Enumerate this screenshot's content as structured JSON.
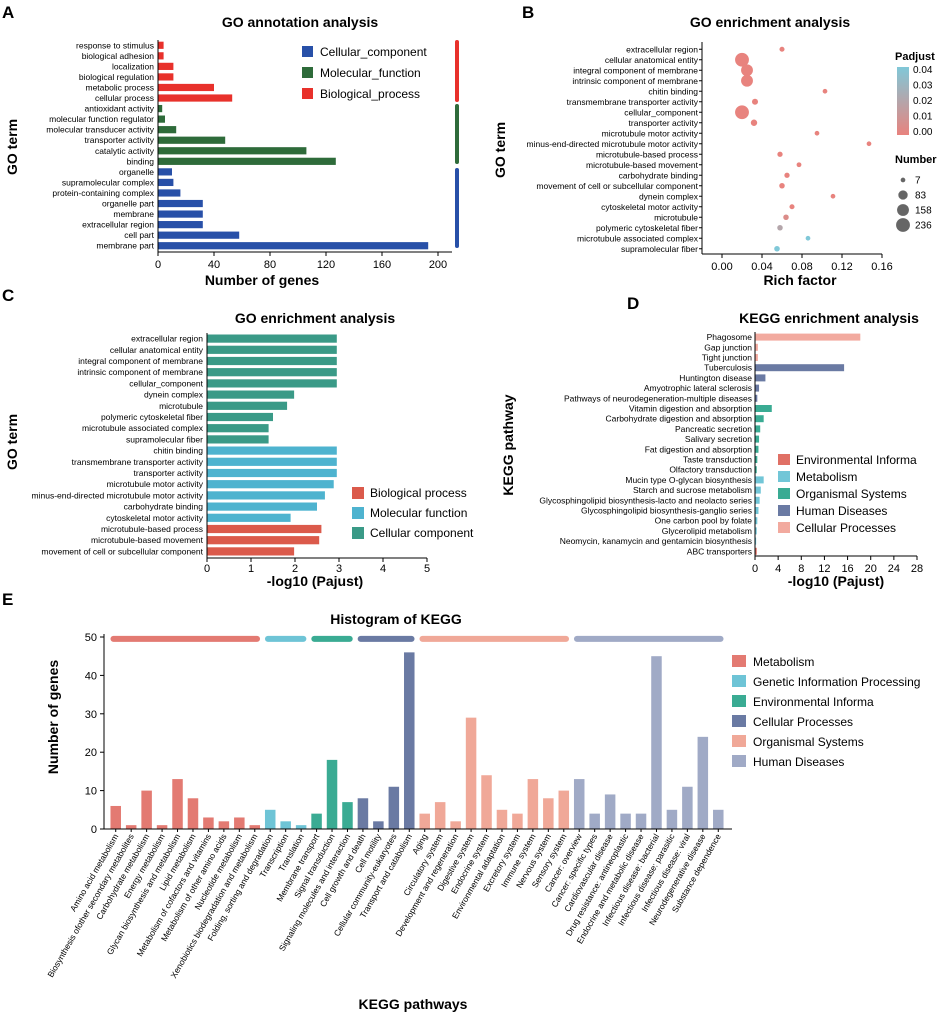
{
  "panels": {
    "A": "A",
    "B": "B",
    "C": "C",
    "D": "D",
    "E": "E"
  },
  "colors": {
    "cellular": "#2850a8",
    "molecular": "#2e6b3a",
    "biological": "#e8312b",
    "c_bio": "#db5a4b",
    "c_mol": "#4eb3cf",
    "c_cell": "#3a9a87",
    "k_env": "#e07065",
    "k_met": "#72c6d7",
    "k_org": "#3aab93",
    "k_hum": "#6a7aa3",
    "k_cel": "#f2aa9f",
    "e_met": "#e37a72",
    "e_gen": "#6ec4d6",
    "e_env": "#3aab93",
    "e_cel": "#6a7aa3",
    "e_org": "#f0a898",
    "e_hum": "#a0aac6",
    "scale_low": "#e8837e",
    "scale_high": "#80c8d8"
  },
  "chart_data": [
    {
      "id": "A",
      "type": "bar",
      "orientation": "horizontal",
      "title": "GO annotation analysis",
      "xlabel": "Number of genes",
      "ylabel": "GO term",
      "xlim": [
        0,
        210
      ],
      "xticks": [
        "0",
        "40",
        "80",
        "120",
        "160",
        "200"
      ],
      "legend": [
        "Cellular_component",
        "Molecular_function",
        "Biological_process"
      ],
      "categories": [
        "response to stimulus",
        "biological adhesion",
        "localization",
        "biological regulation",
        "metabolic process",
        "cellular process",
        "antioxidant activity",
        "molecular function regulator",
        "molecular transducer activity",
        "transporter activity",
        "catalytic activity",
        "binding",
        "organelle",
        "supramolecular complex",
        "protein-containing complex",
        "organelle part",
        "membrane",
        "extracellular region",
        "cell part",
        "membrane part"
      ],
      "groups": [
        "biological",
        "biological",
        "biological",
        "biological",
        "biological",
        "biological",
        "molecular",
        "molecular",
        "molecular",
        "molecular",
        "molecular",
        "molecular",
        "cellular",
        "cellular",
        "cellular",
        "cellular",
        "cellular",
        "cellular",
        "cellular",
        "cellular"
      ],
      "values": [
        4,
        4,
        11,
        11,
        40,
        53,
        3,
        5,
        13,
        48,
        106,
        127,
        10,
        11,
        16,
        32,
        32,
        32,
        58,
        193
      ]
    },
    {
      "id": "B",
      "type": "scatter",
      "title": "GO enrichment analysis",
      "xlabel": "Rich factor",
      "ylabel": "GO term",
      "xlim": [
        -0.02,
        0.16
      ],
      "xticks": [
        "0.00",
        "0.04",
        "0.08",
        "0.12",
        "0.16"
      ],
      "legend_color_title": "Padjust",
      "color_ticks": [
        "0.04",
        "0.03",
        "0.02",
        "0.01",
        "0.00"
      ],
      "legend_size_title": "Number",
      "size_ticks": [
        "7",
        "83",
        "158",
        "236"
      ],
      "categories": [
        "extracellular region",
        "cellular anatomical entity",
        "integral component of membrane",
        "intrinsic component of membrane",
        "chitin binding",
        "transmembrane transporter activity",
        "cellular_component",
        "transporter activity",
        "microtubule motor activity",
        "minus-end-directed microtubule motor activity",
        "microtubule-based process",
        "microtubule-based movement",
        "carbohydrate binding",
        "movement of cell or subcellular component",
        "dynein complex",
        "cytoskeletal motor activity",
        "microtubule",
        "polymeric cytoskeletal fiber",
        "microtubule associated complex",
        "supramolecular fiber"
      ],
      "x": [
        0.06,
        0.02,
        0.025,
        0.025,
        0.103,
        0.033,
        0.02,
        0.032,
        0.095,
        0.147,
        0.058,
        0.077,
        0.065,
        0.06,
        0.111,
        0.07,
        0.064,
        0.058,
        0.086,
        0.055
      ],
      "number": [
        10,
        236,
        158,
        158,
        7,
        20,
        236,
        25,
        7,
        7,
        12,
        8,
        12,
        14,
        7,
        10,
        14,
        14,
        7,
        15
      ],
      "padj": [
        0.0,
        0.0,
        0.0,
        0.0,
        0.0,
        0.0,
        0.0,
        0.0,
        0.0,
        0.0,
        0.0,
        0.0,
        0.0,
        0.0,
        0.0,
        0.0,
        0.005,
        0.02,
        0.04,
        0.04
      ]
    },
    {
      "id": "C",
      "type": "bar",
      "orientation": "horizontal",
      "title": "GO enrichment analysis",
      "xlabel": "-log10 (Pajust)",
      "ylabel": "GO term",
      "xlim": [
        0,
        5
      ],
      "xticks": [
        "0",
        "1",
        "2",
        "3",
        "4",
        "5"
      ],
      "legend": [
        "Biological process",
        "Molecular function",
        "Cellular component"
      ],
      "categories": [
        "extracellular region",
        "cellular anatomical entity",
        "integral component of membrane",
        "intrinsic component of membrane",
        "cellular_component",
        "dynein complex",
        "microtubule",
        "polymeric cytoskeletal fiber",
        "microtubule associated complex",
        "supramolecular fiber",
        "chitin binding",
        "transmembrane transporter activity",
        "transporter activity",
        "microtubule motor activity",
        "minus-end-directed microtubule motor activity",
        "carbohydrate binding",
        "cytoskeletal motor activity",
        "microtubule-based process",
        "microtubule-based movement",
        "movement of cell or subcellular component"
      ],
      "groups": [
        "c_cell",
        "c_cell",
        "c_cell",
        "c_cell",
        "c_cell",
        "c_cell",
        "c_cell",
        "c_cell",
        "c_cell",
        "c_cell",
        "c_mol",
        "c_mol",
        "c_mol",
        "c_mol",
        "c_mol",
        "c_mol",
        "c_mol",
        "c_bio",
        "c_bio",
        "c_bio"
      ],
      "values": [
        2.95,
        2.95,
        2.95,
        2.95,
        2.95,
        1.98,
        1.82,
        1.5,
        1.4,
        1.4,
        2.95,
        2.95,
        2.95,
        2.88,
        2.68,
        2.5,
        1.9,
        2.6,
        2.55,
        1.98
      ]
    },
    {
      "id": "D",
      "type": "bar",
      "orientation": "horizontal",
      "title": "KEGG enrichment analysis",
      "xlabel": "-log10 (Pajust)",
      "ylabel": "KEGG pathway",
      "xlim": [
        0,
        28
      ],
      "xticks": [
        "0",
        "4",
        "8",
        "12",
        "16",
        "20",
        "24",
        "28"
      ],
      "legend": [
        "Environmental Informa",
        "Metabolism",
        "Organismal Systems",
        "Human Diseases",
        "Cellular Processes"
      ],
      "categories": [
        "Phagosome",
        "Gap junction",
        "Tight junction",
        "Tuberculosis",
        "Huntington disease",
        "Amyotrophic lateral sclerosis",
        "Pathways of neurodegeneration-multiple diseases",
        "Vitamin digestion and absorption",
        "Carbohydrate digestion and absorption",
        "Pancreatic secretion",
        "Salivary secretion",
        "Fat digestion and absorption",
        "Taste transduction",
        "Olfactory transduction",
        "Mucin type O-glycan biosynthesis",
        "Starch and sucrose metabolism",
        "Glycosphingolipid biosynthesis-lacto and neolacto series",
        "Glycosphingolipid biosynthesis-ganglio series",
        "One carbon pool by folate",
        "Glycerolipid metabolism",
        "Neomycin, kanamycin and gentamicin biosynthesis",
        "ABC transporters"
      ],
      "groups": [
        "k_cel",
        "k_cel",
        "k_cel",
        "k_hum",
        "k_hum",
        "k_hum",
        "k_hum",
        "k_org",
        "k_org",
        "k_org",
        "k_org",
        "k_org",
        "k_org",
        "k_org",
        "k_met",
        "k_met",
        "k_met",
        "k_met",
        "k_met",
        "k_met",
        "k_met",
        "k_env"
      ],
      "values": [
        18.2,
        0.5,
        0.5,
        15.4,
        1.8,
        0.7,
        0.4,
        2.9,
        1.5,
        0.9,
        0.7,
        0.6,
        0.4,
        0.3,
        1.5,
        1.0,
        0.8,
        0.6,
        0.4,
        0.3,
        0.2,
        0.3
      ]
    },
    {
      "id": "E",
      "type": "bar",
      "title": "Histogram of KEGG",
      "xlabel": "KEGG pathways",
      "ylabel": "Number of genes",
      "ylim": [
        0,
        50
      ],
      "yticks": [
        "0",
        "10",
        "20",
        "30",
        "40",
        "50"
      ],
      "legend": [
        "Metabolism",
        "Genetic Information Processing",
        "Environmental Informa",
        "Cellular Processes",
        "Organismal Systems",
        "Human Diseases"
      ],
      "group_keys": [
        "e_met",
        "e_gen",
        "e_env",
        "e_cel",
        "e_org",
        "e_hum"
      ],
      "categories": [
        "Amino acid metabolism",
        "Biosynthesis ofother secondary metabolites",
        "Carbohydrate metabolism",
        "Energy metabolism",
        "Glycan biosynthesis and metabolism",
        "Lipid metabolism",
        "Metabolism of cofactors and vitamins",
        "Metabolism of other amino acids",
        "Nucleotide metabolism",
        "Xenobiotics biodegradation and metabolism",
        "Folding, sorting and degradation",
        "Transcription",
        "Translation",
        "Membrane transport",
        "Signal transduction",
        "Signaling molecules and interaction",
        "Cell growth and death",
        "Cell motility",
        "Cellular community-eukaryotes",
        "Transport and catabolism",
        "Aging",
        "Circulatory system",
        "Development and regeneration",
        "Digestive system",
        "Endocrine system",
        "Environmental adaptation",
        "Excretory system",
        "Immune system",
        "Nervous system",
        "Sensory system",
        "Cancer: overview",
        "Cancer: specific types",
        "Cardiovascular disease",
        "Drug resistance: antineoplastic",
        "Endocrine and metabolic disease",
        "Infectious disease: bacterial",
        "Infectious disease: parasitic",
        "Infectious disease: viral",
        "Neurodegenerative disease",
        "Substance dependence"
      ],
      "groups": [
        "e_met",
        "e_met",
        "e_met",
        "e_met",
        "e_met",
        "e_met",
        "e_met",
        "e_met",
        "e_met",
        "e_met",
        "e_gen",
        "e_gen",
        "e_gen",
        "e_env",
        "e_env",
        "e_env",
        "e_cel",
        "e_cel",
        "e_cel",
        "e_cel",
        "e_org",
        "e_org",
        "e_org",
        "e_org",
        "e_org",
        "e_org",
        "e_org",
        "e_org",
        "e_org",
        "e_org",
        "e_hum",
        "e_hum",
        "e_hum",
        "e_hum",
        "e_hum",
        "e_hum",
        "e_hum",
        "e_hum",
        "e_hum",
        "e_hum"
      ],
      "values": [
        6,
        1,
        10,
        1,
        13,
        8,
        3,
        2,
        3,
        1,
        5,
        2,
        1,
        4,
        18,
        7,
        8,
        2,
        11,
        46,
        4,
        7,
        2,
        29,
        14,
        5,
        4,
        13,
        8,
        10,
        13,
        4,
        9,
        4,
        4,
        45,
        5,
        11,
        24,
        5
      ]
    }
  ]
}
